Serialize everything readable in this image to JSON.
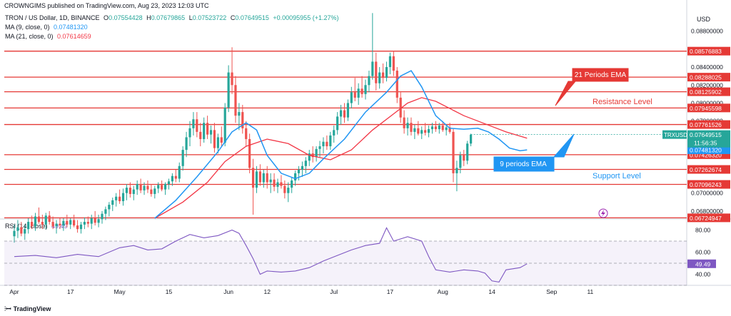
{
  "header": {
    "published": "CROWNGIMS published on TradingView.com, Aug 23, 2023 12:03 UTC",
    "symbol": "TRON / US Dollar, 1D, BINANCE",
    "o_label": "O",
    "o": "0.07554428",
    "h_label": "H",
    "h": "0.07679865",
    "l_label": "L",
    "l": "0.07523722",
    "c_label": "C",
    "c": "0.07649515",
    "change": "+0.00095955 (+1.27%)"
  },
  "indicators": {
    "ma9_label": "MA (9, close, 0)",
    "ma9_value": "0.07481320",
    "ma21_label": "MA (21, close, 0)",
    "ma21_value": "0.07614659",
    "rsi_label": "RSI (14, close)",
    "rsi_value": "49.49"
  },
  "currency": "USD",
  "footer": {
    "brand": "TradingView"
  },
  "colors": {
    "up": "#26a69a",
    "down": "#ef5350",
    "ma9": "#2196f3",
    "ma21": "#f23645",
    "level": "#e53935",
    "rsi": "#7e57c2",
    "price_tag": "#26a69a"
  },
  "annotations": {
    "ema21": "21 Periods EMA",
    "ema9": "9 periods EMA",
    "resistance": "Resistance Level",
    "support": "Support Level"
  },
  "price_tag": {
    "symbol": "TRXUSD",
    "value": "0.07649515",
    "countdown": "11:56:35"
  },
  "chart_data": {
    "type": "candlestick",
    "price_axis": {
      "ylim": [
        0.0672,
        0.0905
      ],
      "ticks": [
        {
          "v": 0.088,
          "label": "0.08800000"
        },
        {
          "v": 0.084,
          "label": "0.08400000"
        },
        {
          "v": 0.082,
          "label": "0.08200000"
        },
        {
          "v": 0.08,
          "label": "0.08000000"
        },
        {
          "v": 0.078,
          "label": "0.07800000"
        },
        {
          "v": 0.07,
          "label": "0.07000000"
        },
        {
          "v": 0.068,
          "label": "0.06800000"
        }
      ]
    },
    "levels": [
      {
        "v": 0.08576883,
        "label": "0.08576883"
      },
      {
        "v": 0.08288025,
        "label": "0.08288025"
      },
      {
        "v": 0.08125902,
        "label": "0.08125902"
      },
      {
        "v": 0.07945598,
        "label": "0.07945598"
      },
      {
        "v": 0.07761526,
        "label": "0.07761526"
      },
      {
        "v": 0.0742632,
        "label": "0.07426320"
      },
      {
        "v": 0.07262674,
        "label": "0.07262674"
      },
      {
        "v": 0.07096243,
        "label": "0.07096243"
      },
      {
        "v": 0.06724947,
        "label": "0.06724947"
      }
    ],
    "ma_tags": [
      {
        "v": 0.07614659,
        "label": "0.07614659",
        "series": "ma21"
      },
      {
        "v": 0.0748132,
        "label": "0.07481320",
        "series": "ma9"
      }
    ],
    "x_labels": [
      "Apr",
      "17",
      "May",
      "15",
      "Jun",
      "12",
      "Jul",
      "17",
      "Aug",
      "14",
      "Sep",
      "11"
    ],
    "x_label_days": [
      0,
      16,
      30,
      44,
      61,
      72,
      91,
      107,
      122,
      136,
      153,
      164
    ],
    "candles": [
      [
        0.0652,
        0.0665,
        0.0645,
        0.0658
      ],
      [
        0.0658,
        0.067,
        0.065,
        0.0662
      ],
      [
        0.0662,
        0.0668,
        0.0652,
        0.0655
      ],
      [
        0.0655,
        0.0665,
        0.0648,
        0.066
      ],
      [
        0.066,
        0.0672,
        0.0655,
        0.0668
      ],
      [
        0.0668,
        0.0675,
        0.066,
        0.0663
      ],
      [
        0.0663,
        0.0678,
        0.0658,
        0.0674
      ],
      [
        0.0674,
        0.0684,
        0.0666,
        0.0668
      ],
      [
        0.0668,
        0.0676,
        0.066,
        0.0665
      ],
      [
        0.0665,
        0.0678,
        0.066,
        0.0675
      ],
      [
        0.0675,
        0.068,
        0.0665,
        0.0668
      ],
      [
        0.0668,
        0.0674,
        0.066,
        0.0663
      ],
      [
        0.0663,
        0.067,
        0.0655,
        0.0666
      ],
      [
        0.0666,
        0.0672,
        0.066,
        0.0664
      ],
      [
        0.0664,
        0.0672,
        0.0658,
        0.0669
      ],
      [
        0.0669,
        0.0676,
        0.0662,
        0.0665
      ],
      [
        0.0665,
        0.0672,
        0.066,
        0.067
      ],
      [
        0.067,
        0.0676,
        0.0662,
        0.0664
      ],
      [
        0.0664,
        0.067,
        0.0656,
        0.066
      ],
      [
        0.066,
        0.0668,
        0.0655,
        0.0665
      ],
      [
        0.0665,
        0.0673,
        0.066,
        0.0668
      ],
      [
        0.0668,
        0.0674,
        0.0662,
        0.0666
      ],
      [
        0.0666,
        0.0676,
        0.066,
        0.0672
      ],
      [
        0.0672,
        0.068,
        0.0664,
        0.0667
      ],
      [
        0.0667,
        0.0676,
        0.0662,
        0.0671
      ],
      [
        0.0671,
        0.068,
        0.0666,
        0.0677
      ],
      [
        0.0677,
        0.0685,
        0.067,
        0.0682
      ],
      [
        0.0682,
        0.069,
        0.0674,
        0.0687
      ],
      [
        0.0687,
        0.0695,
        0.068,
        0.0692
      ],
      [
        0.0692,
        0.07,
        0.0685,
        0.0696
      ],
      [
        0.0696,
        0.0704,
        0.0688,
        0.0691
      ],
      [
        0.0691,
        0.0705,
        0.0686,
        0.07
      ],
      [
        0.07,
        0.071,
        0.0692,
        0.0706
      ],
      [
        0.0706,
        0.0712,
        0.0695,
        0.0699
      ],
      [
        0.0699,
        0.0708,
        0.0692,
        0.0704
      ],
      [
        0.0704,
        0.0714,
        0.0698,
        0.071
      ],
      [
        0.071,
        0.0716,
        0.07,
        0.0703
      ],
      [
        0.0703,
        0.0712,
        0.0698,
        0.0708
      ],
      [
        0.0708,
        0.0714,
        0.07,
        0.0704
      ],
      [
        0.0704,
        0.071,
        0.0696,
        0.0699
      ],
      [
        0.0699,
        0.0708,
        0.0694,
        0.0705
      ],
      [
        0.0705,
        0.0712,
        0.07,
        0.0709
      ],
      [
        0.0709,
        0.0714,
        0.0702,
        0.0704
      ],
      [
        0.0704,
        0.0712,
        0.0698,
        0.071
      ],
      [
        0.071,
        0.0716,
        0.0704,
        0.0713
      ],
      [
        0.0713,
        0.0722,
        0.0708,
        0.0719
      ],
      [
        0.0719,
        0.0726,
        0.0712,
        0.0716
      ],
      [
        0.0716,
        0.0734,
        0.0712,
        0.073
      ],
      [
        0.073,
        0.0752,
        0.0725,
        0.0748
      ],
      [
        0.0748,
        0.0768,
        0.074,
        0.0762
      ],
      [
        0.0762,
        0.078,
        0.0752,
        0.0772
      ],
      [
        0.0772,
        0.079,
        0.0764,
        0.0782
      ],
      [
        0.0782,
        0.079,
        0.0762,
        0.0768
      ],
      [
        0.0768,
        0.0778,
        0.0752,
        0.076
      ],
      [
        0.076,
        0.0784,
        0.0756,
        0.0778
      ],
      [
        0.0778,
        0.0786,
        0.076,
        0.0765
      ],
      [
        0.0765,
        0.0775,
        0.0755,
        0.077
      ],
      [
        0.077,
        0.0778,
        0.0745,
        0.075
      ],
      [
        0.075,
        0.0766,
        0.0744,
        0.0762
      ],
      [
        0.0762,
        0.0774,
        0.0752,
        0.0756
      ],
      [
        0.0756,
        0.08,
        0.0752,
        0.0795
      ],
      [
        0.0795,
        0.0842,
        0.079,
        0.0834
      ],
      [
        0.0834,
        0.0862,
        0.081,
        0.082
      ],
      [
        0.082,
        0.083,
        0.0778,
        0.0786
      ],
      [
        0.0786,
        0.08,
        0.077,
        0.079
      ],
      [
        0.079,
        0.0798,
        0.0766,
        0.0772
      ],
      [
        0.0772,
        0.078,
        0.0752,
        0.076
      ],
      [
        0.076,
        0.0766,
        0.0722,
        0.0728
      ],
      [
        0.0728,
        0.0738,
        0.0676,
        0.0706
      ],
      [
        0.0706,
        0.073,
        0.07,
        0.0724
      ],
      [
        0.0724,
        0.0732,
        0.0708,
        0.0712
      ],
      [
        0.0712,
        0.0726,
        0.0706,
        0.0722
      ],
      [
        0.0722,
        0.073,
        0.0705,
        0.0712
      ],
      [
        0.0712,
        0.0722,
        0.07,
        0.0715
      ],
      [
        0.0715,
        0.0722,
        0.0702,
        0.0707
      ],
      [
        0.0707,
        0.0716,
        0.07,
        0.0712
      ],
      [
        0.0712,
        0.072,
        0.0705,
        0.0708
      ],
      [
        0.0708,
        0.0714,
        0.0694,
        0.07
      ],
      [
        0.07,
        0.0712,
        0.069,
        0.0706
      ],
      [
        0.0706,
        0.0718,
        0.07,
        0.0714
      ],
      [
        0.0714,
        0.0725,
        0.0708,
        0.0722
      ],
      [
        0.0722,
        0.073,
        0.0714,
        0.0726
      ],
      [
        0.0726,
        0.0735,
        0.0718,
        0.073
      ],
      [
        0.073,
        0.074,
        0.0722,
        0.0736
      ],
      [
        0.0736,
        0.0748,
        0.073,
        0.0744
      ],
      [
        0.0744,
        0.0752,
        0.0734,
        0.074
      ],
      [
        0.074,
        0.0752,
        0.0735,
        0.0749
      ],
      [
        0.0749,
        0.0758,
        0.074,
        0.0752
      ],
      [
        0.0752,
        0.0762,
        0.0744,
        0.0757
      ],
      [
        0.0757,
        0.0764,
        0.0748,
        0.0752
      ],
      [
        0.0752,
        0.0768,
        0.0748,
        0.0764
      ],
      [
        0.0764,
        0.0775,
        0.0756,
        0.077
      ],
      [
        0.077,
        0.079,
        0.0765,
        0.0785
      ],
      [
        0.0785,
        0.0798,
        0.0776,
        0.0792
      ],
      [
        0.0792,
        0.08,
        0.0778,
        0.0784
      ],
      [
        0.0784,
        0.0804,
        0.078,
        0.08
      ],
      [
        0.08,
        0.0818,
        0.0794,
        0.0812
      ],
      [
        0.0812,
        0.0828,
        0.0802,
        0.0806
      ],
      [
        0.0806,
        0.0822,
        0.0798,
        0.0816
      ],
      [
        0.0816,
        0.083,
        0.0806,
        0.081
      ],
      [
        0.081,
        0.0826,
        0.0804,
        0.082
      ],
      [
        0.082,
        0.0836,
        0.0812,
        0.083
      ],
      [
        0.083,
        0.09,
        0.0826,
        0.0846
      ],
      [
        0.0846,
        0.0856,
        0.0814,
        0.0822
      ],
      [
        0.0822,
        0.084,
        0.0816,
        0.0834
      ],
      [
        0.0834,
        0.0844,
        0.0822,
        0.0828
      ],
      [
        0.0828,
        0.0846,
        0.0824,
        0.084
      ],
      [
        0.084,
        0.0856,
        0.0832,
        0.0852
      ],
      [
        0.0852,
        0.0858,
        0.083,
        0.0836
      ],
      [
        0.0836,
        0.084,
        0.08,
        0.0806
      ],
      [
        0.0806,
        0.0812,
        0.0778,
        0.0784
      ],
      [
        0.0784,
        0.0792,
        0.0766,
        0.0772
      ],
      [
        0.0772,
        0.0784,
        0.0764,
        0.0778
      ],
      [
        0.0778,
        0.0784,
        0.0764,
        0.0768
      ],
      [
        0.0768,
        0.0776,
        0.076,
        0.0772
      ],
      [
        0.0772,
        0.078,
        0.0764,
        0.0766
      ],
      [
        0.0766,
        0.0774,
        0.076,
        0.077
      ],
      [
        0.077,
        0.0778,
        0.0764,
        0.0767
      ],
      [
        0.0767,
        0.0775,
        0.0762,
        0.0771
      ],
      [
        0.0771,
        0.0778,
        0.0766,
        0.0774
      ],
      [
        0.0774,
        0.078,
        0.0768,
        0.0771
      ],
      [
        0.0771,
        0.0778,
        0.0766,
        0.0775
      ],
      [
        0.0775,
        0.078,
        0.0768,
        0.077
      ],
      [
        0.077,
        0.0776,
        0.0764,
        0.0773
      ],
      [
        0.0773,
        0.0778,
        0.0766,
        0.0768
      ],
      [
        0.0768,
        0.0772,
        0.0712,
        0.0722
      ],
      [
        0.0722,
        0.0736,
        0.0702,
        0.0728
      ],
      [
        0.0728,
        0.0746,
        0.0722,
        0.0742
      ],
      [
        0.0742,
        0.0748,
        0.073,
        0.0736
      ],
      [
        0.0736,
        0.0758,
        0.0732,
        0.0755
      ],
      [
        0.0755,
        0.0766,
        0.0752,
        0.0765
      ]
    ],
    "ma21": [
      [
        40,
        0.0672
      ],
      [
        48,
        0.069
      ],
      [
        55,
        0.0712
      ],
      [
        60,
        0.0735
      ],
      [
        66,
        0.0752
      ],
      [
        72,
        0.076
      ],
      [
        78,
        0.0755
      ],
      [
        84,
        0.0742
      ],
      [
        90,
        0.0737
      ],
      [
        96,
        0.0748
      ],
      [
        102,
        0.077
      ],
      [
        108,
        0.0788
      ],
      [
        112,
        0.08
      ],
      [
        116,
        0.0806
      ],
      [
        120,
        0.0802
      ],
      [
        124,
        0.0794
      ],
      [
        128,
        0.0786
      ],
      [
        132,
        0.078
      ],
      [
        136,
        0.0774
      ],
      [
        140,
        0.0768
      ],
      [
        146,
        0.0761
      ]
    ],
    "ma9": [
      [
        40,
        0.0672
      ],
      [
        46,
        0.0692
      ],
      [
        52,
        0.0718
      ],
      [
        58,
        0.0746
      ],
      [
        62,
        0.0768
      ],
      [
        66,
        0.0778
      ],
      [
        69,
        0.077
      ],
      [
        72,
        0.0742
      ],
      [
        76,
        0.0722
      ],
      [
        80,
        0.0716
      ],
      [
        84,
        0.0722
      ],
      [
        88,
        0.0738
      ],
      [
        94,
        0.076
      ],
      [
        100,
        0.079
      ],
      [
        106,
        0.0812
      ],
      [
        110,
        0.083
      ],
      [
        113,
        0.0836
      ],
      [
        116,
        0.0818
      ],
      [
        120,
        0.0786
      ],
      [
        124,
        0.0772
      ],
      [
        128,
        0.0771
      ],
      [
        132,
        0.0772
      ],
      [
        135,
        0.0768
      ],
      [
        138,
        0.076
      ],
      [
        141,
        0.075
      ],
      [
        144,
        0.0747
      ],
      [
        146,
        0.0748
      ]
    ],
    "rsi": {
      "ylim": [
        30,
        90
      ],
      "ticks": [
        {
          "v": 80,
          "label": "80.00"
        },
        {
          "v": 60,
          "label": "60.00"
        },
        {
          "v": 40,
          "label": "40.00"
        }
      ],
      "bands": [
        70,
        50,
        30
      ],
      "points": [
        [
          0,
          56
        ],
        [
          6,
          57
        ],
        [
          12,
          55
        ],
        [
          18,
          58
        ],
        [
          24,
          56
        ],
        [
          30,
          64
        ],
        [
          34,
          66
        ],
        [
          38,
          62
        ],
        [
          42,
          63
        ],
        [
          46,
          70
        ],
        [
          50,
          76
        ],
        [
          54,
          73
        ],
        [
          58,
          75
        ],
        [
          62,
          80
        ],
        [
          64,
          77
        ],
        [
          66,
          66
        ],
        [
          68,
          54
        ],
        [
          70,
          40
        ],
        [
          72,
          43
        ],
        [
          76,
          42
        ],
        [
          80,
          43
        ],
        [
          84,
          46
        ],
        [
          88,
          52
        ],
        [
          92,
          57
        ],
        [
          96,
          62
        ],
        [
          100,
          66
        ],
        [
          104,
          68
        ],
        [
          106,
          82
        ],
        [
          108,
          70
        ],
        [
          112,
          74
        ],
        [
          116,
          70
        ],
        [
          118,
          56
        ],
        [
          120,
          44
        ],
        [
          124,
          42
        ],
        [
          128,
          44
        ],
        [
          132,
          43
        ],
        [
          134,
          41
        ],
        [
          136,
          34
        ],
        [
          138,
          33
        ],
        [
          140,
          44
        ],
        [
          144,
          46
        ],
        [
          146,
          49.5
        ]
      ]
    }
  }
}
